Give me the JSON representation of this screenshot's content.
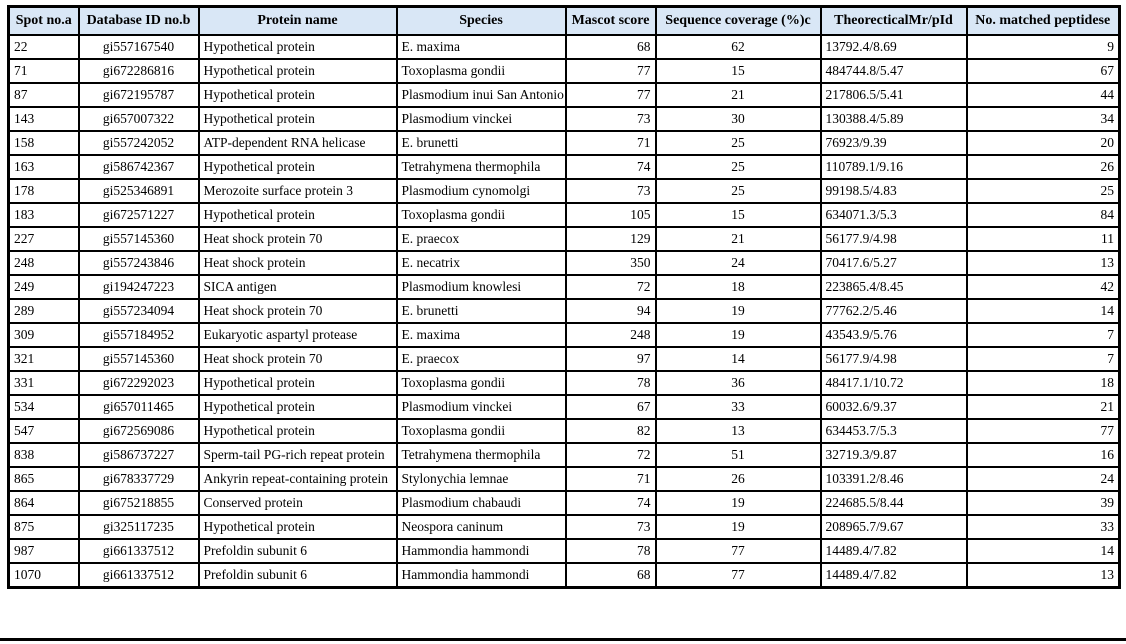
{
  "table": {
    "columns": [
      {
        "label": "Spot no.a",
        "align": "left"
      },
      {
        "label": "Database ID no.b",
        "align": "center"
      },
      {
        "label": "Protein name",
        "align": "left"
      },
      {
        "label": "Species",
        "align": "left"
      },
      {
        "label": "Mascot score",
        "align": "right"
      },
      {
        "label": "Sequence coverage (%)c",
        "align": "center"
      },
      {
        "label": "TheorecticalMr/pId",
        "align": "left"
      },
      {
        "label": "No. matched peptidese",
        "align": "right"
      }
    ],
    "rows": [
      [
        "22",
        "gi557167540",
        "Hypothetical protein",
        "E. maxima",
        "68",
        "62",
        "13792.4/8.69",
        "9"
      ],
      [
        "71",
        "gi672286816",
        "Hypothetical protein",
        "Toxoplasma gondii",
        "77",
        "15",
        "484744.8/5.47",
        "67"
      ],
      [
        "87",
        "gi672195787",
        "Hypothetical protein",
        "Plasmodium inui San Antonio",
        "77",
        "21",
        "217806.5/5.41",
        "44"
      ],
      [
        "143",
        "gi657007322",
        "Hypothetical protein",
        "Plasmodium vinckei",
        "73",
        "30",
        "130388.4/5.89",
        "34"
      ],
      [
        "158",
        "gi557242052",
        "ATP-dependent RNA helicase",
        "E. brunetti",
        "71",
        "25",
        "76923/9.39",
        "20"
      ],
      [
        "163",
        "gi586742367",
        "Hypothetical protein",
        "Tetrahymena thermophila",
        "74",
        "25",
        "110789.1/9.16",
        "26"
      ],
      [
        "178",
        "gi525346891",
        "Merozoite surface protein 3",
        "Plasmodium cynomolgi",
        "73",
        "25",
        "99198.5/4.83",
        "25"
      ],
      [
        "183",
        "gi672571227",
        "Hypothetical protein",
        "Toxoplasma gondii",
        "105",
        "15",
        "634071.3/5.3",
        "84"
      ],
      [
        "227",
        "gi557145360",
        "Heat shock protein 70",
        "E. praecox",
        "129",
        "21",
        "56177.9/4.98",
        "11"
      ],
      [
        "248",
        "gi557243846",
        "Heat shock protein",
        "E. necatrix",
        "350",
        "24",
        "70417.6/5.27",
        "13"
      ],
      [
        "249",
        "gi194247223",
        "SICA antigen",
        "Plasmodium knowlesi",
        "72",
        "18",
        "223865.4/8.45",
        "42"
      ],
      [
        "289",
        "gi557234094",
        "Heat shock protein 70",
        "E. brunetti",
        "94",
        "19",
        "77762.2/5.46",
        "14"
      ],
      [
        "309",
        "gi557184952",
        "Eukaryotic aspartyl protease",
        "E. maxima",
        "248",
        "19",
        "43543.9/5.76",
        "7"
      ],
      [
        "321",
        "gi557145360",
        "Heat shock protein 70",
        "E. praecox",
        "97",
        "14",
        "56177.9/4.98",
        "7"
      ],
      [
        "331",
        "gi672292023",
        "Hypothetical protein",
        "Toxoplasma gondii",
        "78",
        "36",
        "48417.1/10.72",
        "18"
      ],
      [
        "534",
        "gi657011465",
        "Hypothetical protein",
        "Plasmodium vinckei",
        "67",
        "33",
        "60032.6/9.37",
        "21"
      ],
      [
        "547",
        "gi672569086",
        "Hypothetical protein",
        "Toxoplasma gondii",
        "82",
        "13",
        "634453.7/5.3",
        "77"
      ],
      [
        "838",
        "gi586737227",
        "Sperm-tail PG-rich repeat protein",
        "Tetrahymena thermophila",
        "72",
        "51",
        "32719.3/9.87",
        "16"
      ],
      [
        "865",
        "gi678337729",
        "Ankyrin repeat-containing protein",
        "Stylonychia lemnae",
        "71",
        "26",
        "103391.2/8.46",
        "24"
      ],
      [
        "864",
        "gi675218855",
        "Conserved protein",
        "Plasmodium chabaudi",
        "74",
        "19",
        "224685.5/8.44",
        "39"
      ],
      [
        "875",
        "gi325117235",
        "Hypothetical protein",
        "Neospora caninum",
        "73",
        "19",
        "208965.7/9.67",
        "33"
      ],
      [
        "987",
        "gi661337512",
        "Prefoldin subunit 6",
        "Hammondia hammondi",
        "78",
        "77",
        "14489.4/7.82",
        "14"
      ],
      [
        "1070",
        "gi661337512",
        "Prefoldin subunit 6",
        "Hammondia hammondi",
        "68",
        "77",
        "14489.4/7.82",
        "13"
      ]
    ],
    "header_bg": "#d9e7f6",
    "border_color": "#000000"
  }
}
